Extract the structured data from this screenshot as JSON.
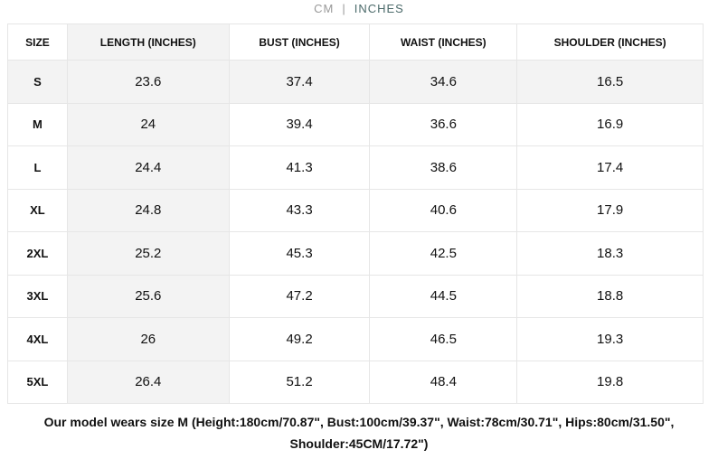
{
  "unit_toggle": {
    "cm": "CM",
    "separator": "|",
    "inches": "INCHES",
    "active": "INCHES"
  },
  "table": {
    "headers": [
      "SIZE",
      "LENGTH (INCHES)",
      "BUST (INCHES)",
      "WAIST (INCHES)",
      "SHOULDER (INCHES)"
    ],
    "rows": [
      [
        "S",
        "23.6",
        "37.4",
        "34.6",
        "16.5"
      ],
      [
        "M",
        "24",
        "39.4",
        "36.6",
        "16.9"
      ],
      [
        "L",
        "24.4",
        "41.3",
        "38.6",
        "17.4"
      ],
      [
        "XL",
        "24.8",
        "43.3",
        "40.6",
        "17.9"
      ],
      [
        "2XL",
        "25.2",
        "45.3",
        "42.5",
        "18.3"
      ],
      [
        "3XL",
        "25.6",
        "47.2",
        "44.5",
        "18.8"
      ],
      [
        "4XL",
        "26",
        "49.2",
        "46.5",
        "19.3"
      ],
      [
        "5XL",
        "26.4",
        "51.2",
        "48.4",
        "19.8"
      ]
    ]
  },
  "note": {
    "line1": "Our model wears size M (Height:180cm/70.87\", Bust:100cm/39.37\", Waist:78cm/30.71\", Hips:80cm/31.50\",",
    "line2": "Shoulder:45CM/17.72\")"
  }
}
